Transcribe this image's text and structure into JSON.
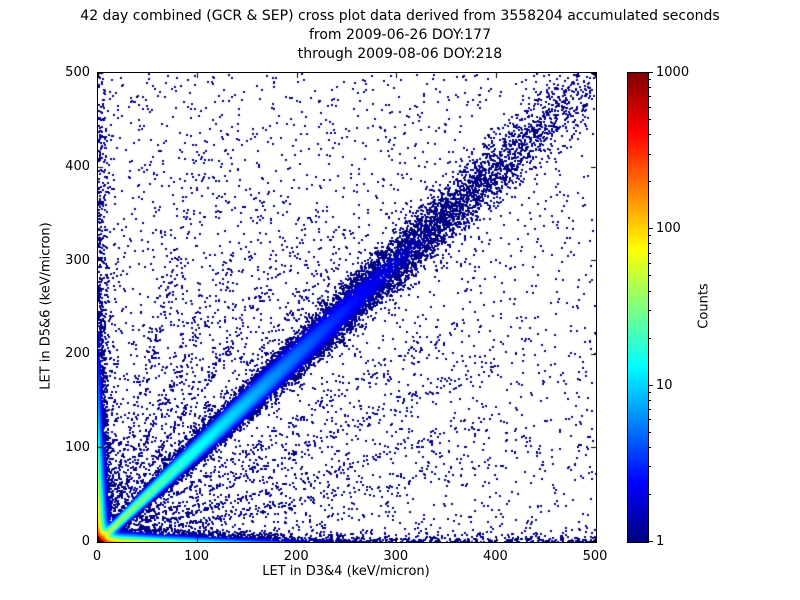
{
  "chart_data": {
    "type": "scatter",
    "title": "42 day combined (GCR & SEP) cross plot data derived from 3558204 accumulated seconds",
    "subtitle_from": "from 2009-06-26 DOY:177",
    "subtitle_through": "through 2009-08-06 DOY:218",
    "xlabel": "LET in D3&4 (keV/micron)",
    "ylabel": "LET in D5&6 (keV/micron)",
    "xlim": [
      0,
      500
    ],
    "ylim": [
      0,
      500
    ],
    "xticks": [
      0,
      100,
      200,
      300,
      400,
      500
    ],
    "yticks": [
      0,
      100,
      200,
      300,
      400,
      500
    ],
    "grid": false,
    "colorbar": {
      "label": "Counts",
      "scale": "log",
      "min": 1,
      "max": 1000,
      "ticks": [
        1,
        10,
        100,
        1000
      ],
      "colormap": "jet"
    },
    "features": [
      "dense hot cluster at origin, counts up to ~1000 (red/orange core within ~5 keV/micron)",
      "bright cyan/green diagonal correlation band y=x fading out near 300 keV/micron",
      "dense vertical band of low counts along x=0 over full y range",
      "dense horizontal band of low counts along y=0 over full x range",
      "faint ray-like streaks radiating from the origin",
      "sparse single-count dark blue points scattered over the entire plane"
    ],
    "density_model": {
      "seed": 20090626,
      "accept_scale": 0.45,
      "terms": {
        "corner_peak": {
          "amp": 1400,
          "falloff": 3.5
        },
        "hot_bottom": {
          "amp": 150,
          "y_scale": 2.5,
          "x_scale": 45
        },
        "hot_left": {
          "amp": 150,
          "x_scale": 2.5,
          "y_scale": 45
        },
        "diagonal": {
          "amp": 45,
          "length_scale": 90,
          "width0": 1.8,
          "width_growth": 0.03
        },
        "band_bottom": {
          "amp": 0.55,
          "y_scale": 5,
          "x_scale": 300
        },
        "band_left": {
          "amp": 0.55,
          "x_scale": 5,
          "y_scale": 280
        },
        "bottom_floor": {
          "amp": 0.35,
          "y_scale": 4
        },
        "left_floor": {
          "amp": 0.35,
          "x_scale": 4
        },
        "origin_glow": {
          "amp": 1.0,
          "r_scale": 32
        },
        "sparse_decay": {
          "amp": 0.07,
          "r_scale": 240
        },
        "uniform": 0.013,
        "rays": {
          "angles_deg": [
            12,
            18,
            26,
            33,
            52,
            58,
            66,
            75
          ],
          "amp": 0.55,
          "ang_sigma_deg": 0.9,
          "r_scale": 150
        }
      }
    }
  }
}
